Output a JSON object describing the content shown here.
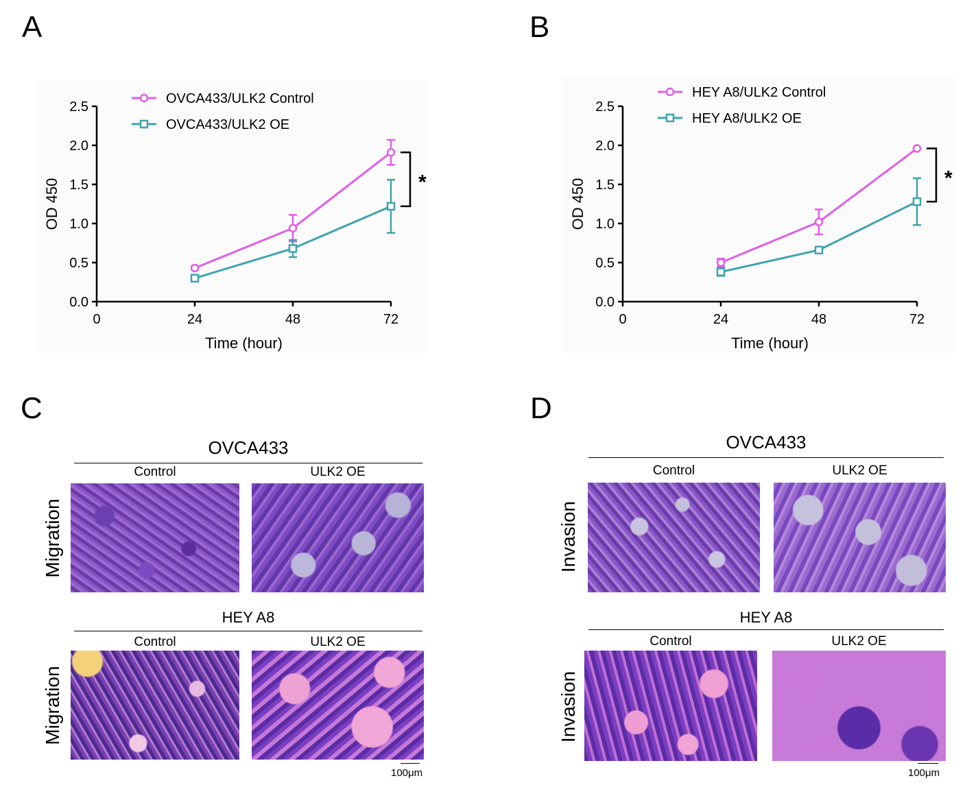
{
  "panels": {
    "A": "A",
    "B": "B",
    "C": "C",
    "D": "D"
  },
  "chart_data": [
    {
      "type": "line",
      "panel": "A",
      "xlabel": "Time (hour)",
      "ylabel": "OD 450",
      "xlim": [
        0,
        72
      ],
      "ylim": [
        0,
        2.5
      ],
      "xticks": [
        "0",
        "24",
        "48",
        "72"
      ],
      "yticks": [
        "0.0",
        "0.5",
        "1.0",
        "1.5",
        "2.0",
        "2.5"
      ],
      "x": [
        24,
        48,
        72
      ],
      "legend_position": "top",
      "significance": "*",
      "series": [
        {
          "name": "OVCA433/ULK2 Control",
          "values": [
            0.43,
            0.94,
            1.91
          ],
          "errors": [
            0.02,
            0.17,
            0.16
          ],
          "marker": "circle",
          "color": "#e35ce8"
        },
        {
          "name": "OVCA433/ULK2 OE",
          "values": [
            0.3,
            0.68,
            1.22
          ],
          "errors": [
            0.02,
            0.11,
            0.34
          ],
          "marker": "square",
          "color": "#3fa3ac"
        }
      ]
    },
    {
      "type": "line",
      "panel": "B",
      "xlabel": "Time (hour)",
      "ylabel": "OD 450",
      "xlim": [
        0,
        72
      ],
      "ylim": [
        0,
        2.5
      ],
      "xticks": [
        "0",
        "24",
        "48",
        "72"
      ],
      "yticks": [
        "0.0",
        "0.5",
        "1.0",
        "1.5",
        "2.0",
        "2.5"
      ],
      "x": [
        24,
        48,
        72
      ],
      "legend_position": "top",
      "significance": "*",
      "series": [
        {
          "name": "HEY A8/ULK2 Control",
          "values": [
            0.5,
            1.02,
            1.96
          ],
          "errors": [
            0.05,
            0.16,
            0.0
          ],
          "marker": "circle",
          "color": "#e35ce8"
        },
        {
          "name": "HEY A8/ULK2 OE",
          "values": [
            0.38,
            0.66,
            1.28
          ],
          "errors": [
            0.05,
            0.0,
            0.3
          ],
          "marker": "square",
          "color": "#3fa3ac"
        }
      ]
    }
  ],
  "sectionC": {
    "top_title": "OVCA433",
    "bottom_title": "HEY A8",
    "col_control": "Control",
    "col_oe": "ULK2 OE",
    "row_label": "Migration",
    "scale": "100μm"
  },
  "sectionD": {
    "top_title": "OVCA433",
    "bottom_title": "HEY A8",
    "col_control": "Control",
    "col_oe": "ULK2 OE",
    "row_label": "Invasion",
    "scale": "100μm"
  },
  "colors": {
    "control": "#e35ce8",
    "oe": "#3fa3ac"
  }
}
